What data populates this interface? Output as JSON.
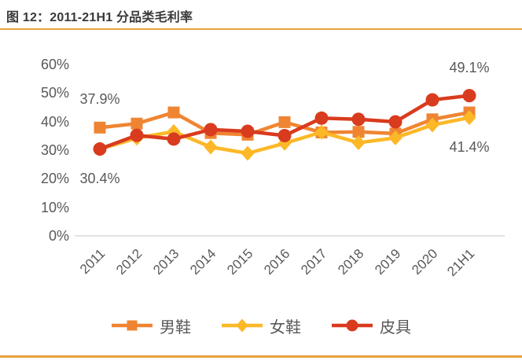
{
  "header": {
    "title": "图 12：2011-21H1 分品类毛利率"
  },
  "colors": {
    "accent_rule": "#E8A23B",
    "axis_line": "#D9D9D9",
    "text_gray": "#595959",
    "title_color": "#3B3838"
  },
  "chart_data": {
    "type": "line",
    "title": "2011-21H1 分品类毛利率",
    "categories": [
      "2011",
      "2012",
      "2013",
      "2014",
      "2015",
      "2016",
      "2017",
      "2018",
      "2019",
      "2020",
      "21H1"
    ],
    "series": [
      {
        "name": "男鞋",
        "marker": "square",
        "color": "#EF8532",
        "values": [
          37.9,
          39.3,
          43.2,
          36.0,
          35.4,
          39.8,
          36.2,
          36.4,
          35.8,
          40.8,
          43.2
        ]
      },
      {
        "name": "女鞋",
        "marker": "diamond",
        "color": "#FCB827",
        "values": [
          30.4,
          34.2,
          36.5,
          31.1,
          28.9,
          32.4,
          36.3,
          32.6,
          34.3,
          38.8,
          41.4
        ]
      },
      {
        "name": "皮具",
        "marker": "circle",
        "color": "#D93B1E",
        "values": [
          30.4,
          35.2,
          33.9,
          37.2,
          36.6,
          35.1,
          41.2,
          40.8,
          39.9,
          47.6,
          49.1
        ]
      }
    ],
    "y_ticks": [
      {
        "label": "60%",
        "value": 60
      },
      {
        "label": "50%",
        "value": 50
      },
      {
        "label": "40%",
        "value": 40
      },
      {
        "label": "30%",
        "value": 30
      },
      {
        "label": "20%",
        "value": 20
      },
      {
        "label": "10%",
        "value": 10
      },
      {
        "label": "0%",
        "value": 0
      }
    ],
    "ylim": [
      0,
      60
    ],
    "grid": false,
    "legend_position": "bottom",
    "annotations": [
      {
        "text": "37.9%",
        "series": "男鞋",
        "index": 0,
        "position": "above"
      },
      {
        "text": "30.4%",
        "series": "皮具",
        "index": 0,
        "position": "below"
      },
      {
        "text": "49.1%",
        "series": "皮具",
        "index": 10,
        "position": "above"
      },
      {
        "text": "41.4%",
        "series": "女鞋",
        "index": 10,
        "position": "below"
      }
    ]
  }
}
